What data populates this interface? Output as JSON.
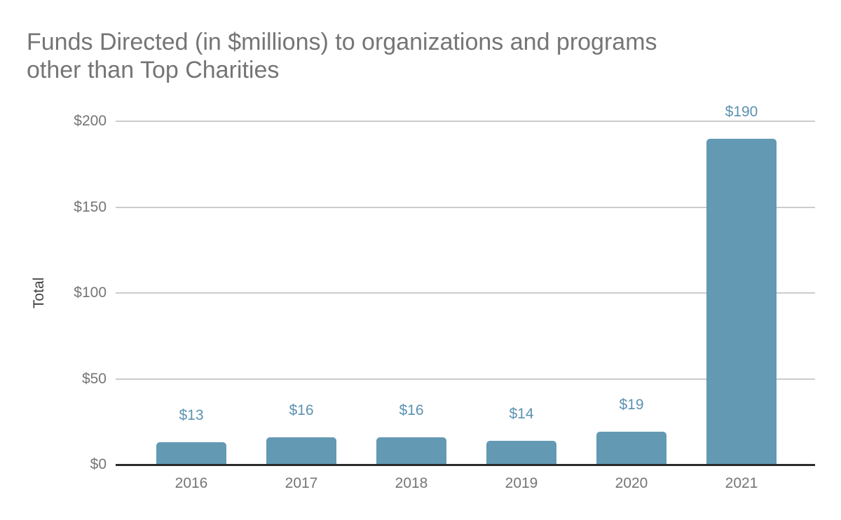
{
  "chart_data": {
    "type": "bar",
    "title": "Funds Directed (in $millions) to organizations and programs other than Top Charities",
    "title_lines": [
      "Funds Directed (in $millions) to organizations and programs",
      "other than Top Charities"
    ],
    "xlabel": "",
    "ylabel": "Total",
    "categories": [
      "2016",
      "2017",
      "2018",
      "2019",
      "2020",
      "2021"
    ],
    "values": [
      13,
      16,
      16,
      14,
      19,
      190
    ],
    "data_labels": [
      "$13",
      "$16",
      "$16",
      "$14",
      "$19",
      "$190"
    ],
    "ylim": [
      0,
      200
    ],
    "y_tick_values": [
      0,
      50,
      100,
      150,
      200
    ],
    "y_tick_labels": [
      "$0",
      "$50",
      "$100",
      "$150",
      "$200"
    ],
    "grid": true,
    "legend_position": "none",
    "colors": {
      "bar": "#6499b4",
      "data_label": "#5b92b0",
      "grid_line": "#cccccc",
      "axis_line": "#2b2b2b",
      "tick_label": "#757575",
      "category_label": "#757575",
      "title": "#757575",
      "axis_title": "#424242",
      "background": "#ffffff"
    }
  }
}
